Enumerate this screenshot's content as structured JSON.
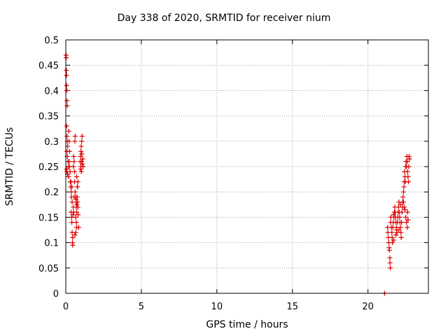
{
  "chart_data": {
    "type": "scatter",
    "title": "Day 338 of 2020, SRMTID for receiver nium",
    "xlabel": "GPS time / hours",
    "ylabel": "SRMTID / TECUs",
    "xlim": [
      0,
      24
    ],
    "ylim": [
      0,
      0.5
    ],
    "xticks": [
      0,
      5,
      10,
      15,
      20
    ],
    "yticks": [
      0,
      0.05,
      0.1,
      0.15,
      0.2,
      0.25,
      0.3,
      0.35,
      0.4,
      0.45,
      0.5
    ],
    "grid": true,
    "marker": "+",
    "color": "#dd0000",
    "series": [
      {
        "name": "SRMTID",
        "points": [
          [
            0.02,
            0.47
          ],
          [
            0.03,
            0.465
          ],
          [
            0.04,
            0.44
          ],
          [
            0.05,
            0.43
          ],
          [
            0.06,
            0.41
          ],
          [
            0.07,
            0.4
          ],
          [
            0.08,
            0.38
          ],
          [
            0.09,
            0.37
          ],
          [
            0.06,
            0.33
          ],
          [
            0.08,
            0.31
          ],
          [
            0.1,
            0.3
          ],
          [
            0.12,
            0.29
          ],
          [
            0.08,
            0.28
          ],
          [
            0.1,
            0.27
          ],
          [
            0.14,
            0.26
          ],
          [
            0.16,
            0.25
          ],
          [
            0.05,
            0.245
          ],
          [
            0.07,
            0.24
          ],
          [
            0.12,
            0.235
          ],
          [
            0.18,
            0.23
          ],
          [
            0.2,
            0.32
          ],
          [
            0.22,
            0.3
          ],
          [
            0.25,
            0.28
          ],
          [
            0.22,
            0.26
          ],
          [
            0.25,
            0.25
          ],
          [
            0.28,
            0.24
          ],
          [
            0.3,
            0.22
          ],
          [
            0.32,
            0.21
          ],
          [
            0.34,
            0.22
          ],
          [
            0.36,
            0.2
          ],
          [
            0.4,
            0.21
          ],
          [
            0.38,
            0.19
          ],
          [
            0.42,
            0.18
          ],
          [
            0.35,
            0.16
          ],
          [
            0.38,
            0.15
          ],
          [
            0.4,
            0.14
          ],
          [
            0.42,
            0.12
          ],
          [
            0.45,
            0.11
          ],
          [
            0.44,
            0.1
          ],
          [
            0.46,
            0.095
          ],
          [
            0.48,
            0.155
          ],
          [
            0.5,
            0.17
          ],
          [
            0.52,
            0.16
          ],
          [
            0.55,
            0.19
          ],
          [
            0.5,
            0.25
          ],
          [
            0.52,
            0.27
          ],
          [
            0.55,
            0.26
          ],
          [
            0.58,
            0.24
          ],
          [
            0.6,
            0.3
          ],
          [
            0.62,
            0.31
          ],
          [
            0.58,
            0.22
          ],
          [
            0.62,
            0.2
          ],
          [
            0.65,
            0.19
          ],
          [
            0.68,
            0.18
          ],
          [
            0.7,
            0.17
          ],
          [
            0.72,
            0.16
          ],
          [
            0.66,
            0.15
          ],
          [
            0.7,
            0.14
          ],
          [
            0.72,
            0.13
          ],
          [
            0.6,
            0.115
          ],
          [
            0.65,
            0.12
          ],
          [
            0.75,
            0.19
          ],
          [
            0.78,
            0.18
          ],
          [
            0.8,
            0.17
          ],
          [
            0.82,
            0.155
          ],
          [
            0.85,
            0.13
          ],
          [
            0.78,
            0.21
          ],
          [
            0.8,
            0.22
          ],
          [
            0.72,
            0.23
          ],
          [
            0.76,
            0.21
          ],
          [
            0.68,
            0.185
          ],
          [
            0.74,
            0.175
          ],
          [
            0.95,
            0.26
          ],
          [
            0.98,
            0.27
          ],
          [
            1.0,
            0.28
          ],
          [
            1.02,
            0.29
          ],
          [
            1.05,
            0.3
          ],
          [
            1.08,
            0.31
          ],
          [
            1.0,
            0.25
          ],
          [
            1.05,
            0.26
          ],
          [
            1.1,
            0.255
          ],
          [
            1.12,
            0.265
          ],
          [
            1.15,
            0.25
          ],
          [
            0.98,
            0.245
          ],
          [
            1.06,
            0.275
          ],
          [
            1.03,
            0.24
          ],
          [
            21.1,
            0.0
          ],
          [
            21.3,
            0.13
          ],
          [
            21.32,
            0.12
          ],
          [
            21.35,
            0.11
          ],
          [
            21.38,
            0.1
          ],
          [
            21.4,
            0.09
          ],
          [
            21.42,
            0.085
          ],
          [
            21.45,
            0.07
          ],
          [
            21.46,
            0.06
          ],
          [
            21.48,
            0.05
          ],
          [
            21.5,
            0.14
          ],
          [
            21.52,
            0.15
          ],
          [
            21.55,
            0.13
          ],
          [
            21.58,
            0.12
          ],
          [
            21.6,
            0.11
          ],
          [
            21.62,
            0.1
          ],
          [
            21.65,
            0.13
          ],
          [
            21.68,
            0.14
          ],
          [
            21.7,
            0.155
          ],
          [
            21.72,
            0.15
          ],
          [
            21.75,
            0.16
          ],
          [
            21.78,
            0.17
          ],
          [
            21.8,
            0.16
          ],
          [
            21.82,
            0.15
          ],
          [
            21.85,
            0.14
          ],
          [
            21.88,
            0.13
          ],
          [
            21.9,
            0.125
          ],
          [
            21.92,
            0.12
          ],
          [
            21.95,
            0.14
          ],
          [
            21.98,
            0.15
          ],
          [
            22.0,
            0.16
          ],
          [
            22.02,
            0.17
          ],
          [
            22.05,
            0.18
          ],
          [
            22.08,
            0.16
          ],
          [
            22.1,
            0.15
          ],
          [
            22.12,
            0.14
          ],
          [
            22.15,
            0.13
          ],
          [
            22.18,
            0.12
          ],
          [
            22.2,
            0.11
          ],
          [
            22.22,
            0.14
          ],
          [
            22.25,
            0.16
          ],
          [
            22.28,
            0.17
          ],
          [
            22.3,
            0.18
          ],
          [
            22.32,
            0.19
          ],
          [
            22.35,
            0.2
          ],
          [
            22.38,
            0.21
          ],
          [
            22.4,
            0.22
          ],
          [
            22.42,
            0.24
          ],
          [
            22.45,
            0.23
          ],
          [
            22.48,
            0.22
          ],
          [
            22.5,
            0.25
          ],
          [
            22.52,
            0.26
          ],
          [
            22.55,
            0.25
          ],
          [
            22.58,
            0.27
          ],
          [
            22.6,
            0.26
          ],
          [
            22.62,
            0.24
          ],
          [
            22.65,
            0.23
          ],
          [
            22.68,
            0.22
          ],
          [
            22.7,
            0.25
          ],
          [
            22.72,
            0.27
          ],
          [
            22.75,
            0.265
          ],
          [
            22.5,
            0.15
          ],
          [
            22.55,
            0.14
          ],
          [
            22.6,
            0.13
          ],
          [
            22.62,
            0.16
          ],
          [
            22.65,
            0.145
          ],
          [
            22.4,
            0.17
          ],
          [
            22.45,
            0.165
          ],
          [
            22.35,
            0.18
          ],
          [
            21.7,
            0.105
          ],
          [
            21.85,
            0.115
          ],
          [
            22.05,
            0.125
          ],
          [
            22.15,
            0.175
          ]
        ]
      }
    ]
  }
}
